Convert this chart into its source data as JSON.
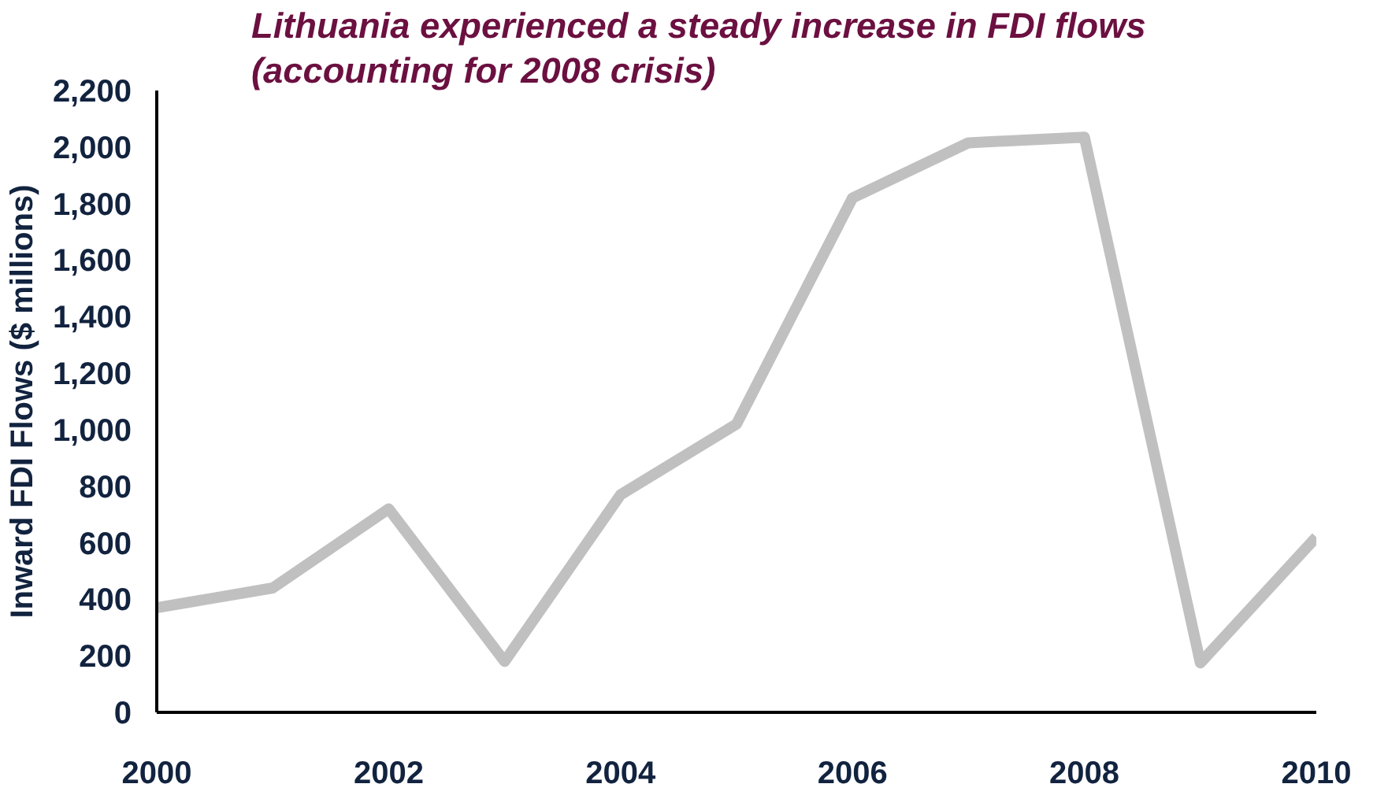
{
  "chart_data": {
    "type": "line",
    "title": "Lithuania experienced a steady increase in FDI flows\n(accounting for 2008 crisis)",
    "ylabel": "Inward FDI Flows ($ millions)",
    "x": [
      2000,
      2001,
      2002,
      2003,
      2004,
      2005,
      2006,
      2007,
      2008,
      2009,
      2010
    ],
    "series": [
      {
        "color": "#c0c0c0",
        "values": [
          370,
          440,
          720,
          180,
          770,
          1020,
          1820,
          2015,
          2035,
          175,
          620
        ]
      }
    ],
    "xlim": [
      2000,
      2010
    ],
    "xticks": [
      2000,
      2002,
      2004,
      2006,
      2008,
      2010
    ],
    "ylim": [
      0,
      2200
    ],
    "yticks": [
      0,
      200,
      400,
      600,
      800,
      {
        "value": 1000,
        "label": "1,000"
      },
      {
        "value": 1200,
        "label": "1,200"
      },
      {
        "value": 1400,
        "label": "1,400"
      },
      {
        "value": 1600,
        "label": "1,600"
      },
      {
        "value": 1800,
        "label": "1,800"
      },
      {
        "value": 2000,
        "label": "2,000"
      },
      {
        "value": 2200,
        "label": "2,200"
      }
    ],
    "grid": false,
    "marker": "none",
    "line_style": "solid"
  }
}
